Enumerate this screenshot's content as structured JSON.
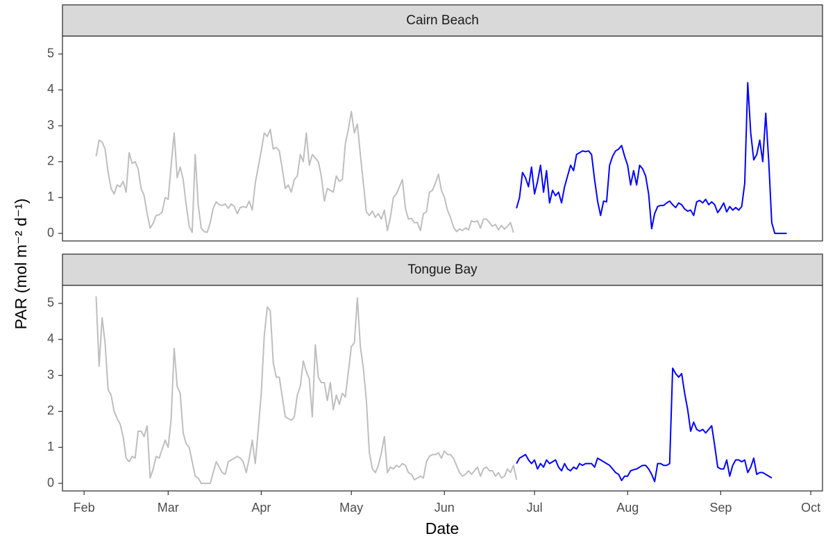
{
  "chart_data": [
    {
      "type": "line",
      "title": "Cairn Beach",
      "ylabel": "PAR (mol m⁻² d⁻¹)",
      "xlim": [
        24.8,
        277.9
      ],
      "ylim": [
        -0.21,
        5.5
      ],
      "yticks": [
        0,
        1,
        2,
        3,
        4,
        5
      ],
      "series": [
        {
          "color": "#bebebe",
          "x": [
            36,
            37,
            38,
            39,
            40,
            41,
            42,
            43,
            44,
            45,
            46,
            47,
            48,
            49,
            50,
            51,
            52,
            53,
            54,
            55,
            56,
            57,
            58,
            59,
            60,
            61,
            62,
            63,
            64,
            65,
            66,
            67,
            68,
            69,
            70,
            71,
            72,
            73,
            74,
            75,
            76,
            77,
            78,
            79,
            80,
            81,
            82,
            83,
            84,
            85,
            86,
            87,
            88,
            89,
            90,
            91,
            92,
            93,
            94,
            95,
            96,
            97,
            98,
            99,
            100,
            101,
            102,
            103,
            104,
            105,
            106,
            107,
            108,
            109,
            110,
            111,
            112,
            113,
            114,
            115,
            116,
            117,
            118,
            119,
            120,
            121,
            122,
            123,
            124,
            125,
            126,
            127,
            128,
            129,
            130,
            131,
            132,
            133,
            134,
            135,
            136,
            137,
            138,
            139,
            140,
            141,
            142,
            143,
            144,
            145,
            146,
            147,
            148,
            149,
            150,
            151,
            152,
            153,
            154,
            155,
            156,
            157,
            158,
            159,
            160,
            161,
            162,
            163,
            164,
            165,
            166,
            167,
            168,
            169,
            170,
            171,
            172,
            173,
            174,
            175
          ],
          "values": [
            2.15,
            2.6,
            2.55,
            2.35,
            1.7,
            1.25,
            1.1,
            1.35,
            1.3,
            1.45,
            1.15,
            2.25,
            1.95,
            2.0,
            1.8,
            1.25,
            1.05,
            0.55,
            0.15,
            0.28,
            0.5,
            0.52,
            0.6,
            1.0,
            0.95,
            1.9,
            2.8,
            1.55,
            1.85,
            1.5,
            0.8,
            0.2,
            0.03,
            2.2,
            0.8,
            0.15,
            0.05,
            0.03,
            0.3,
            0.7,
            0.88,
            0.8,
            0.78,
            0.82,
            0.7,
            0.82,
            0.75,
            0.55,
            0.72,
            0.75,
            0.72,
            0.9,
            0.65,
            1.4,
            1.85,
            2.3,
            2.8,
            2.7,
            2.9,
            2.35,
            2.4,
            2.3,
            1.8,
            1.25,
            1.35,
            1.15,
            1.5,
            1.6,
            2.2,
            2.0,
            2.8,
            1.9,
            2.2,
            2.1,
            2.0,
            1.6,
            0.9,
            1.25,
            1.2,
            1.15,
            1.6,
            1.45,
            1.5,
            2.5,
            2.9,
            3.4,
            2.8,
            3.05,
            2.2,
            1.4,
            0.6,
            0.5,
            0.62,
            0.45,
            0.55,
            0.4,
            0.65,
            0.08,
            0.45,
            1.0,
            1.1,
            1.3,
            1.5,
            0.7,
            0.4,
            0.42,
            0.3,
            0.3,
            0.08,
            0.55,
            0.6,
            1.15,
            1.2,
            1.4,
            1.65,
            1.2,
            1.0,
            0.65,
            0.45,
            0.18,
            0.05,
            0.12,
            0.08,
            0.15,
            0.1,
            0.35,
            0.32,
            0.35,
            0.15,
            0.4,
            0.4,
            0.3,
            0.2,
            0.25,
            0.1,
            0.22,
            0.12,
            0.2,
            0.3,
            0.02
          ]
        },
        {
          "color": "#0000ff",
          "x": [
            176,
            177,
            178,
            179,
            180,
            181,
            182,
            183,
            184,
            185,
            186,
            187,
            188,
            189,
            190,
            191,
            192,
            193,
            194,
            195,
            196,
            197,
            198,
            199,
            200,
            201,
            202,
            203,
            204,
            205,
            206,
            207,
            208,
            209,
            210,
            211,
            212,
            213,
            214,
            215,
            216,
            217,
            218,
            219,
            220,
            221,
            222,
            223,
            224,
            225,
            226,
            227,
            228,
            229,
            230,
            231,
            232,
            233,
            234,
            235,
            236,
            237,
            238,
            239,
            240,
            241,
            242,
            243,
            244,
            245,
            246,
            247,
            248,
            249,
            250,
            251,
            252,
            253,
            254,
            255,
            256,
            257,
            258,
            259,
            260,
            261,
            262,
            263,
            264,
            265,
            266
          ],
          "values": [
            0.7,
            1.0,
            1.7,
            1.55,
            1.3,
            1.85,
            1.1,
            1.45,
            1.9,
            1.15,
            1.75,
            0.85,
            1.2,
            1.05,
            1.15,
            0.85,
            1.3,
            1.6,
            1.9,
            1.75,
            2.2,
            2.25,
            2.3,
            2.28,
            2.3,
            2.2,
            1.5,
            0.9,
            0.5,
            0.9,
            0.88,
            1.9,
            2.15,
            2.3,
            2.35,
            2.45,
            2.15,
            1.9,
            1.35,
            1.75,
            1.35,
            1.9,
            1.8,
            1.6,
            1.1,
            0.13,
            0.55,
            0.75,
            0.78,
            0.78,
            0.85,
            0.9,
            0.8,
            0.72,
            0.85,
            0.8,
            0.68,
            0.62,
            0.65,
            0.5,
            0.88,
            0.92,
            0.85,
            0.95,
            0.8,
            0.88,
            0.8,
            0.58,
            0.7,
            0.85,
            0.6,
            0.75,
            0.65,
            0.72,
            0.65,
            0.75,
            1.4,
            4.2,
            2.8,
            2.05,
            2.2,
            2.6,
            2.0,
            3.35,
            2.0,
            0.3,
            0,
            0,
            0,
            0,
            0
          ]
        }
      ]
    },
    {
      "type": "line",
      "title": "Tongue Bay",
      "xlabel": "Date",
      "xlim": [
        24.8,
        277.9
      ],
      "ylim": [
        -0.21,
        5.5
      ],
      "yticks": [
        0,
        1,
        2,
        3,
        4,
        5
      ],
      "xticks": [
        {
          "value": 32,
          "label": "Feb"
        },
        {
          "value": 60,
          "label": "Mar"
        },
        {
          "value": 91,
          "label": "Apr"
        },
        {
          "value": 121,
          "label": "May"
        },
        {
          "value": 152,
          "label": "Jun"
        },
        {
          "value": 182,
          "label": "Jul"
        },
        {
          "value": 213,
          "label": "Aug"
        },
        {
          "value": 244,
          "label": "Sep"
        },
        {
          "value": 274,
          "label": "Oct"
        }
      ],
      "series": [
        {
          "color": "#bebebe",
          "x": [
            36,
            37,
            38,
            39,
            40,
            41,
            42,
            43,
            44,
            45,
            46,
            47,
            48,
            49,
            50,
            51,
            52,
            53,
            54,
            55,
            56,
            57,
            58,
            59,
            60,
            61,
            62,
            63,
            64,
            65,
            66,
            67,
            68,
            69,
            70,
            71,
            72,
            73,
            74,
            75,
            76,
            77,
            78,
            79,
            80,
            81,
            82,
            83,
            84,
            85,
            86,
            87,
            88,
            89,
            90,
            91,
            92,
            93,
            94,
            95,
            96,
            97,
            98,
            99,
            100,
            101,
            102,
            103,
            104,
            105,
            106,
            107,
            108,
            109,
            110,
            111,
            112,
            113,
            114,
            115,
            116,
            117,
            118,
            119,
            120,
            121,
            122,
            123,
            124,
            125,
            126,
            127,
            128,
            129,
            130,
            131,
            132,
            133,
            134,
            135,
            136,
            137,
            138,
            139,
            140,
            141,
            142,
            143,
            144,
            145,
            146,
            147,
            148,
            149,
            150,
            151,
            152,
            153,
            154,
            155,
            156,
            157,
            158,
            159,
            160,
            161,
            162,
            163,
            164,
            165,
            166,
            167,
            168,
            169,
            170,
            171,
            172,
            173,
            174,
            175,
            176
          ],
          "values": [
            5.2,
            3.25,
            4.6,
            3.9,
            2.6,
            2.45,
            2.0,
            1.8,
            1.65,
            1.3,
            0.7,
            0.6,
            0.75,
            0.7,
            1.45,
            1.45,
            1.3,
            1.6,
            0.15,
            0.4,
            0.75,
            0.7,
            0.95,
            1.2,
            1.0,
            1.8,
            3.75,
            2.7,
            2.5,
            1.4,
            1.1,
            1.0,
            0.6,
            0.2,
            0.15,
            0,
            0,
            0,
            0,
            0.3,
            0.6,
            0.45,
            0.3,
            0.25,
            0.6,
            0.65,
            0.7,
            0.75,
            0.7,
            0.6,
            0.3,
            0.7,
            1.2,
            0.55,
            1.5,
            2.5,
            4.1,
            4.9,
            4.8,
            3.35,
            2.95,
            2.95,
            2.4,
            1.85,
            1.8,
            1.75,
            1.85,
            2.45,
            2.7,
            3.4,
            3.1,
            2.9,
            1.85,
            3.85,
            2.95,
            2.8,
            2.8,
            2.3,
            2.8,
            2.05,
            2.45,
            2.2,
            2.5,
            2.4,
            3.1,
            3.8,
            3.9,
            5.15,
            3.8,
            3.2,
            2.3,
            0.85,
            0.4,
            0.3,
            0.5,
            0.85,
            1.3,
            0.3,
            0.45,
            0.4,
            0.5,
            0.45,
            0.55,
            0.5,
            0.3,
            0.25,
            0.1,
            0.15,
            0.2,
            0.15,
            0.6,
            0.75,
            0.8,
            0.8,
            0.85,
            0.7,
            0.9,
            0.8,
            0.8,
            0.7,
            0.5,
            0.3,
            0.2,
            0.25,
            0.35,
            0.25,
            0.35,
            0.45,
            0.2,
            0.4,
            0.45,
            0.35,
            0.35,
            0.2,
            0.3,
            0.15,
            0.2,
            0.4,
            0.3,
            0.5,
            0.1
          ]
        },
        {
          "color": "#0000ff",
          "x": [
            176,
            177,
            178,
            179,
            180,
            181,
            182,
            183,
            184,
            185,
            186,
            187,
            188,
            189,
            190,
            191,
            192,
            193,
            194,
            195,
            196,
            197,
            198,
            199,
            200,
            201,
            202,
            203,
            204,
            205,
            206,
            207,
            208,
            209,
            210,
            211,
            212,
            213,
            214,
            215,
            216,
            217,
            218,
            219,
            220,
            221,
            222,
            223,
            224,
            225,
            226,
            227,
            228,
            229,
            230,
            231,
            232,
            233,
            234,
            235,
            236,
            237,
            238,
            239,
            240,
            241,
            242,
            243,
            244,
            245,
            246,
            247,
            248,
            249,
            250,
            251,
            252,
            253,
            254,
            255,
            256,
            257,
            258,
            259,
            260,
            261
          ],
          "values": [
            0.55,
            0.7,
            0.75,
            0.8,
            0.65,
            0.55,
            0.65,
            0.4,
            0.55,
            0.45,
            0.65,
            0.55,
            0.6,
            0.65,
            0.45,
            0.35,
            0.55,
            0.4,
            0.35,
            0.45,
            0.4,
            0.55,
            0.5,
            0.55,
            0.55,
            0.55,
            0.45,
            0.7,
            0.65,
            0.6,
            0.55,
            0.5,
            0.4,
            0.3,
            0.25,
            0.08,
            0.2,
            0.2,
            0.35,
            0.38,
            0.4,
            0.45,
            0.5,
            0.5,
            0.4,
            0.25,
            0.05,
            0.55,
            0.55,
            0.5,
            0.5,
            0.55,
            3.2,
            3.05,
            2.95,
            3.05,
            2.5,
            2.05,
            1.45,
            1.7,
            1.5,
            1.45,
            1.5,
            1.4,
            1.5,
            1.6,
            1.05,
            0.45,
            0.4,
            0.4,
            0.65,
            0.2,
            0.5,
            0.65,
            0.65,
            0.6,
            0.65,
            0.3,
            0.45,
            0.7,
            0.25,
            0.3,
            0.3,
            0.25,
            0.2,
            0.15
          ]
        }
      ]
    }
  ]
}
